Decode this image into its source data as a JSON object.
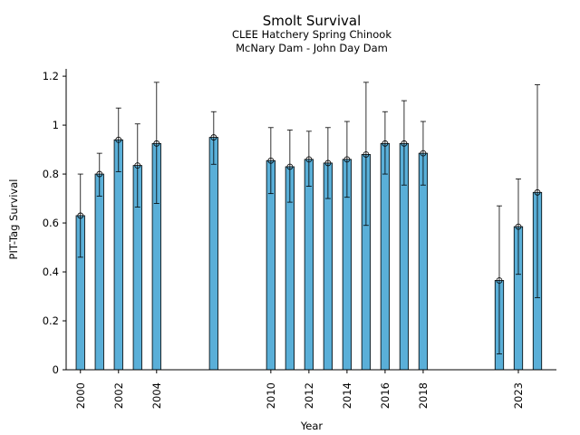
{
  "chart_data": {
    "type": "bar",
    "title": "Smolt Survival",
    "subtitle_lines": [
      "CLEE Hatchery Spring Chinook",
      "McNary Dam - John Day Dam"
    ],
    "xlabel": "Year",
    "ylabel": "PIT-Tag Survival",
    "ylim": [
      0,
      1.23
    ],
    "xlim": [
      1999.25,
      2025.0
    ],
    "x_ticks": [
      2000,
      2002,
      2004,
      2010,
      2012,
      2014,
      2016,
      2018,
      2023
    ],
    "x_tick_labels": [
      "2000",
      "2002",
      "2004",
      "2010",
      "2012",
      "2014",
      "2016",
      "2018",
      "2023"
    ],
    "y_ticks": [
      0,
      0.2,
      0.4,
      0.6,
      0.8,
      1.0,
      1.2
    ],
    "y_tick_labels": [
      "0",
      "0.2",
      "0.4",
      "0.6",
      "0.8",
      "1",
      "1.2"
    ],
    "grid": false,
    "bar_color": "#5aafd8",
    "points": [
      {
        "year": 2000,
        "value": 0.63,
        "lower": 0.46,
        "upper": 0.8
      },
      {
        "year": 2001,
        "value": 0.8,
        "lower": 0.71,
        "upper": 0.885
      },
      {
        "year": 2002,
        "value": 0.94,
        "lower": 0.81,
        "upper": 1.07
      },
      {
        "year": 2003,
        "value": 0.835,
        "lower": 0.665,
        "upper": 1.005
      },
      {
        "year": 2004,
        "value": 0.925,
        "lower": 0.68,
        "upper": 1.175
      },
      {
        "year": 2007,
        "value": 0.95,
        "lower": 0.84,
        "upper": 1.055
      },
      {
        "year": 2010,
        "value": 0.855,
        "lower": 0.72,
        "upper": 0.99
      },
      {
        "year": 2011,
        "value": 0.83,
        "lower": 0.685,
        "upper": 0.98
      },
      {
        "year": 2012,
        "value": 0.86,
        "lower": 0.75,
        "upper": 0.975
      },
      {
        "year": 2013,
        "value": 0.845,
        "lower": 0.7,
        "upper": 0.99
      },
      {
        "year": 2014,
        "value": 0.86,
        "lower": 0.705,
        "upper": 1.015
      },
      {
        "year": 2015,
        "value": 0.88,
        "lower": 0.59,
        "upper": 1.175
      },
      {
        "year": 2016,
        "value": 0.925,
        "lower": 0.8,
        "upper": 1.055
      },
      {
        "year": 2017,
        "value": 0.925,
        "lower": 0.755,
        "upper": 1.1
      },
      {
        "year": 2018,
        "value": 0.885,
        "lower": 0.755,
        "upper": 1.015
      },
      {
        "year": 2022,
        "value": 0.365,
        "lower": 0.065,
        "upper": 0.67
      },
      {
        "year": 2023,
        "value": 0.585,
        "lower": 0.39,
        "upper": 0.78
      },
      {
        "year": 2024,
        "value": 0.725,
        "lower": 0.295,
        "upper": 1.165
      }
    ]
  }
}
